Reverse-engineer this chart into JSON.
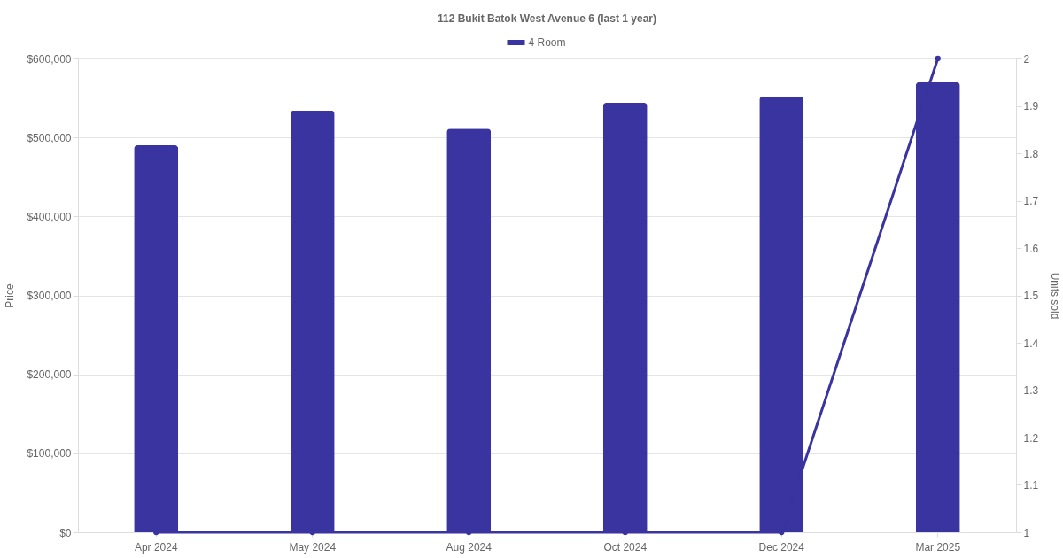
{
  "chart_data": {
    "type": "bar",
    "title": "112 Bukit Batok West Avenue 6 (last 1 year)",
    "ylabel": "Price",
    "y2label": "Units sold",
    "categories": [
      "Apr 2024",
      "May 2024",
      "Aug 2024",
      "Oct 2024",
      "Dec 2024",
      "Mar 2025"
    ],
    "series": [
      {
        "name": "4 Room",
        "color": "#3934a0",
        "values": [
          490000,
          534000,
          511000,
          544000,
          552000,
          570000
        ]
      },
      {
        "type": "line",
        "axis": "y2",
        "color": "#3934a0",
        "marker": "circle",
        "values": [
          1,
          1,
          1,
          1,
          1,
          2
        ]
      }
    ],
    "ylim": [
      0,
      600000
    ],
    "yticks": [
      {
        "value": 0,
        "label": "$0"
      },
      {
        "value": 100000,
        "label": "$100,000"
      },
      {
        "value": 200000,
        "label": "$200,000"
      },
      {
        "value": 300000,
        "label": "$300,000"
      },
      {
        "value": 400000,
        "label": "$400,000"
      },
      {
        "value": 500000,
        "label": "$500,000"
      },
      {
        "value": 600000,
        "label": "$600,000"
      }
    ],
    "y2lim": [
      1,
      2
    ],
    "y2ticks": [
      1,
      1.1,
      1.2,
      1.3,
      1.4,
      1.5,
      1.6,
      1.7,
      1.8,
      1.9,
      2
    ],
    "grid": "y",
    "legend": "top"
  }
}
